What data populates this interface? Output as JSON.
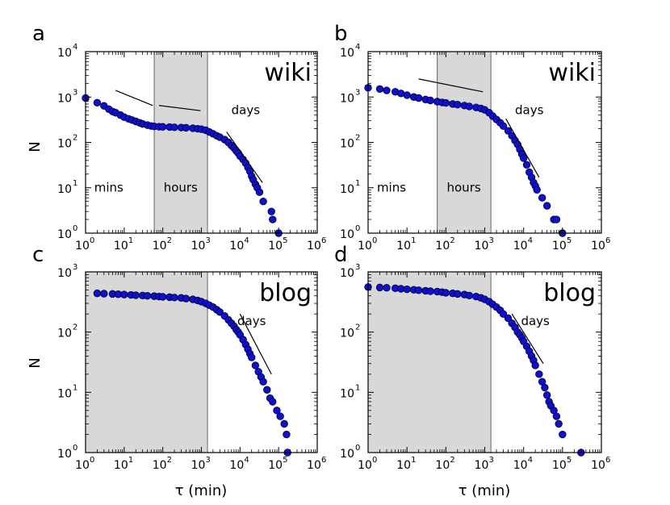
{
  "figure": {
    "x_axis_label": "τ (min)",
    "y_axis_label": "N"
  },
  "colors": {
    "marker_fill": "#1010cc",
    "marker_edge": "#000033",
    "shade": "#d8d8d8",
    "frame": "#000000"
  },
  "chart_data": [
    {
      "id": "a",
      "type": "scatter",
      "letter": "a",
      "title": "wiki",
      "xscale": "log",
      "yscale": "log",
      "xlim": [
        1,
        1000000
      ],
      "ylim": [
        1,
        10000
      ],
      "x_ticks": [
        {
          "base": "10",
          "exp": "0"
        },
        {
          "base": "10",
          "exp": "1"
        },
        {
          "base": "10",
          "exp": "2"
        },
        {
          "base": "10",
          "exp": "3"
        },
        {
          "base": "10",
          "exp": "4"
        },
        {
          "base": "10",
          "exp": "5"
        },
        {
          "base": "10",
          "exp": "6"
        }
      ],
      "y_ticks": [
        {
          "base": "10",
          "exp": "0"
        },
        {
          "base": "10",
          "exp": "1"
        },
        {
          "base": "10",
          "exp": "2"
        },
        {
          "base": "10",
          "exp": "3"
        },
        {
          "base": "10",
          "exp": "4"
        }
      ],
      "shaded_region": [
        60,
        1440
      ],
      "annotations": [
        {
          "text": "mins",
          "x": 4,
          "y": 10
        },
        {
          "text": "hours",
          "x": 290,
          "y": 10
        },
        {
          "text": "days",
          "x": 14000,
          "y": 500
        }
      ],
      "guide_lines": [
        {
          "x": [
            6,
            55
          ],
          "y": [
            1400,
            650
          ]
        },
        {
          "x": [
            80,
            950
          ],
          "y": [
            650,
            500
          ]
        },
        {
          "x": [
            4500,
            38000
          ],
          "y": [
            170,
            13
          ]
        }
      ],
      "series": [
        {
          "name": "wiki",
          "points": [
            [
              1,
              950
            ],
            [
              2,
              750
            ],
            [
              3,
              640
            ],
            [
              4,
              540
            ],
            [
              5,
              480
            ],
            [
              6,
              450
            ],
            [
              8,
              400
            ],
            [
              10,
              360
            ],
            [
              13,
              330
            ],
            [
              16,
              310
            ],
            [
              20,
              290
            ],
            [
              25,
              270
            ],
            [
              30,
              255
            ],
            [
              40,
              240
            ],
            [
              50,
              230
            ],
            [
              60,
              225
            ],
            [
              80,
              222
            ],
            [
              100,
              220
            ],
            [
              150,
              218
            ],
            [
              200,
              215
            ],
            [
              300,
              213
            ],
            [
              400,
              210
            ],
            [
              600,
              205
            ],
            [
              800,
              200
            ],
            [
              1000,
              195
            ],
            [
              1300,
              185
            ],
            [
              1600,
              170
            ],
            [
              2000,
              155
            ],
            [
              2500,
              140
            ],
            [
              3000,
              130
            ],
            [
              4000,
              115
            ],
            [
              5000,
              100
            ],
            [
              6000,
              85
            ],
            [
              7000,
              75
            ],
            [
              8000,
              65
            ],
            [
              9000,
              58
            ],
            [
              10000,
              50
            ],
            [
              12000,
              42
            ],
            [
              14000,
              35
            ],
            [
              16000,
              28
            ],
            [
              18000,
              23
            ],
            [
              20000,
              18
            ],
            [
              22000,
              15
            ],
            [
              25000,
              12
            ],
            [
              28000,
              10
            ],
            [
              32000,
              8
            ],
            [
              40000,
              5
            ],
            [
              65000,
              3
            ],
            [
              70000,
              2
            ],
            [
              100000,
              1
            ]
          ]
        }
      ]
    },
    {
      "id": "b",
      "type": "scatter",
      "letter": "b",
      "title": "wiki",
      "xscale": "log",
      "yscale": "log",
      "xlim": [
        1,
        1000000
      ],
      "ylim": [
        1,
        10000
      ],
      "x_ticks": [
        {
          "base": "10",
          "exp": "0"
        },
        {
          "base": "10",
          "exp": "1"
        },
        {
          "base": "10",
          "exp": "2"
        },
        {
          "base": "10",
          "exp": "3"
        },
        {
          "base": "10",
          "exp": "4"
        },
        {
          "base": "10",
          "exp": "5"
        },
        {
          "base": "10",
          "exp": "6"
        }
      ],
      "y_ticks": [
        {
          "base": "10",
          "exp": "0"
        },
        {
          "base": "10",
          "exp": "1"
        },
        {
          "base": "10",
          "exp": "2"
        },
        {
          "base": "10",
          "exp": "3"
        },
        {
          "base": "10",
          "exp": "4"
        }
      ],
      "shaded_region": [
        60,
        1440
      ],
      "annotations": [
        {
          "text": "mins",
          "x": 4,
          "y": 10
        },
        {
          "text": "hours",
          "x": 290,
          "y": 10
        },
        {
          "text": "days",
          "x": 14000,
          "y": 500
        }
      ],
      "guide_lines": [
        {
          "x": [
            20,
            900
          ],
          "y": [
            2500,
            1300
          ]
        },
        {
          "x": [
            3500,
            25000
          ],
          "y": [
            330,
            17
          ]
        }
      ],
      "series": [
        {
          "name": "wiki",
          "points": [
            [
              1,
              1600
            ],
            [
              2,
              1500
            ],
            [
              3,
              1400
            ],
            [
              5,
              1300
            ],
            [
              7,
              1200
            ],
            [
              10,
              1100
            ],
            [
              15,
              1000
            ],
            [
              20,
              950
            ],
            [
              30,
              880
            ],
            [
              40,
              840
            ],
            [
              60,
              790
            ],
            [
              80,
              760
            ],
            [
              100,
              740
            ],
            [
              150,
              700
            ],
            [
              200,
              680
            ],
            [
              300,
              650
            ],
            [
              400,
              620
            ],
            [
              600,
              590
            ],
            [
              800,
              560
            ],
            [
              1000,
              520
            ],
            [
              1300,
              450
            ],
            [
              1600,
              380
            ],
            [
              2000,
              320
            ],
            [
              2500,
              270
            ],
            [
              3000,
              230
            ],
            [
              4000,
              180
            ],
            [
              5000,
              140
            ],
            [
              6000,
              110
            ],
            [
              7000,
              90
            ],
            [
              8000,
              70
            ],
            [
              9000,
              55
            ],
            [
              10000,
              45
            ],
            [
              12000,
              32
            ],
            [
              14000,
              22
            ],
            [
              16000,
              17
            ],
            [
              18000,
              13
            ],
            [
              20000,
              11
            ],
            [
              22000,
              9
            ],
            [
              30000,
              6
            ],
            [
              40000,
              4
            ],
            [
              60000,
              2
            ],
            [
              70000,
              2
            ],
            [
              100000,
              1
            ]
          ]
        }
      ]
    },
    {
      "id": "c",
      "type": "scatter",
      "letter": "c",
      "title": "blog",
      "xscale": "log",
      "yscale": "log",
      "xlim": [
        1,
        1000000
      ],
      "ylim": [
        1,
        1000
      ],
      "x_ticks": [
        {
          "base": "10",
          "exp": "0"
        },
        {
          "base": "10",
          "exp": "1"
        },
        {
          "base": "10",
          "exp": "2"
        },
        {
          "base": "10",
          "exp": "3"
        },
        {
          "base": "10",
          "exp": "4"
        },
        {
          "base": "10",
          "exp": "5"
        },
        {
          "base": "10",
          "exp": "6"
        }
      ],
      "y_ticks": [
        {
          "base": "10",
          "exp": "0"
        },
        {
          "base": "10",
          "exp": "1"
        },
        {
          "base": "10",
          "exp": "2"
        },
        {
          "base": "10",
          "exp": "3"
        }
      ],
      "shaded_region": [
        1,
        1440
      ],
      "annotations": [
        {
          "text": "days",
          "x": 20000,
          "y": 150
        }
      ],
      "guide_lines": [
        {
          "x": [
            10000,
            65000
          ],
          "y": [
            200,
            20
          ]
        }
      ],
      "series": [
        {
          "name": "blog",
          "points": [
            [
              2,
              440
            ],
            [
              3,
              435
            ],
            [
              5,
              430
            ],
            [
              7,
              425
            ],
            [
              10,
              420
            ],
            [
              15,
              415
            ],
            [
              20,
              410
            ],
            [
              30,
              405
            ],
            [
              40,
              400
            ],
            [
              60,
              395
            ],
            [
              80,
              390
            ],
            [
              100,
              385
            ],
            [
              150,
              380
            ],
            [
              200,
              375
            ],
            [
              300,
              370
            ],
            [
              400,
              360
            ],
            [
              600,
              350
            ],
            [
              800,
              335
            ],
            [
              1000,
              320
            ],
            [
              1300,
              300
            ],
            [
              1600,
              280
            ],
            [
              2000,
              260
            ],
            [
              2500,
              235
            ],
            [
              3000,
              215
            ],
            [
              4000,
              185
            ],
            [
              5000,
              160
            ],
            [
              6000,
              140
            ],
            [
              7000,
              125
            ],
            [
              8000,
              110
            ],
            [
              9000,
              100
            ],
            [
              10000,
              90
            ],
            [
              12000,
              75
            ],
            [
              14000,
              62
            ],
            [
              16000,
              52
            ],
            [
              18000,
              44
            ],
            [
              20000,
              38
            ],
            [
              25000,
              28
            ],
            [
              30000,
              22
            ],
            [
              35000,
              18
            ],
            [
              40000,
              15
            ],
            [
              50000,
              11
            ],
            [
              60000,
              8
            ],
            [
              70000,
              7
            ],
            [
              90000,
              5
            ],
            [
              110000,
              4
            ],
            [
              140000,
              3
            ],
            [
              160000,
              2
            ],
            [
              170000,
              1
            ]
          ]
        }
      ]
    },
    {
      "id": "d",
      "type": "scatter",
      "letter": "d",
      "title": "blog",
      "xscale": "log",
      "yscale": "log",
      "xlim": [
        1,
        1000000
      ],
      "ylim": [
        1,
        1000
      ],
      "x_ticks": [
        {
          "base": "10",
          "exp": "0"
        },
        {
          "base": "10",
          "exp": "1"
        },
        {
          "base": "10",
          "exp": "2"
        },
        {
          "base": "10",
          "exp": "3"
        },
        {
          "base": "10",
          "exp": "4"
        },
        {
          "base": "10",
          "exp": "5"
        },
        {
          "base": "10",
          "exp": "6"
        }
      ],
      "y_ticks": [
        {
          "base": "10",
          "exp": "0"
        },
        {
          "base": "10",
          "exp": "1"
        },
        {
          "base": "10",
          "exp": "2"
        },
        {
          "base": "10",
          "exp": "3"
        }
      ],
      "shaded_region": [
        1,
        1440
      ],
      "annotations": [
        {
          "text": "days",
          "x": 20000,
          "y": 150
        }
      ],
      "guide_lines": [
        {
          "x": [
            5000,
            32000
          ],
          "y": [
            200,
            30
          ]
        }
      ],
      "series": [
        {
          "name": "blog",
          "points": [
            [
              1,
              560
            ],
            [
              2,
              550
            ],
            [
              3,
              545
            ],
            [
              5,
              535
            ],
            [
              7,
              525
            ],
            [
              10,
              515
            ],
            [
              15,
              505
            ],
            [
              20,
              495
            ],
            [
              30,
              485
            ],
            [
              40,
              478
            ],
            [
              60,
              470
            ],
            [
              80,
              460
            ],
            [
              100,
              450
            ],
            [
              150,
              440
            ],
            [
              200,
              430
            ],
            [
              300,
              420
            ],
            [
              400,
              405
            ],
            [
              600,
              390
            ],
            [
              800,
              370
            ],
            [
              1000,
              350
            ],
            [
              1300,
              320
            ],
            [
              1600,
              290
            ],
            [
              2000,
              260
            ],
            [
              2500,
              230
            ],
            [
              3000,
              200
            ],
            [
              4000,
              170
            ],
            [
              5000,
              140
            ],
            [
              6000,
              120
            ],
            [
              7000,
              100
            ],
            [
              8000,
              90
            ],
            [
              9000,
              80
            ],
            [
              10000,
              70
            ],
            [
              12000,
              58
            ],
            [
              14000,
              48
            ],
            [
              16000,
              40
            ],
            [
              18000,
              34
            ],
            [
              20000,
              28
            ],
            [
              25000,
              20
            ],
            [
              30000,
              15
            ],
            [
              35000,
              12
            ],
            [
              40000,
              9
            ],
            [
              45000,
              7
            ],
            [
              50000,
              6
            ],
            [
              60000,
              5
            ],
            [
              70000,
              4
            ],
            [
              80000,
              3
            ],
            [
              100000,
              2
            ],
            [
              300000,
              1
            ]
          ]
        }
      ]
    }
  ]
}
